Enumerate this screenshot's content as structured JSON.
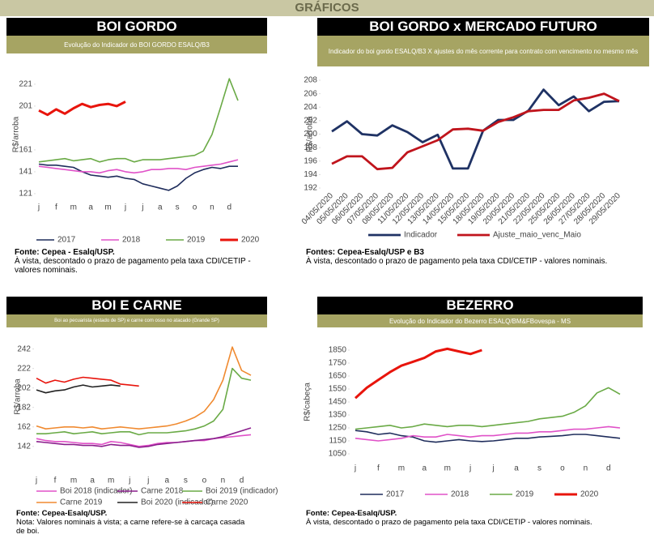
{
  "header": {
    "title": "GRÁFICOS"
  },
  "chart_data": [
    {
      "type": "line",
      "title": "BOI GORDO",
      "subtitle": "Evolução do Indicador do BOI GORDO ESALQ/B3",
      "y_label": "R$/arroba",
      "categories": [
        "j",
        null,
        "f",
        null,
        "m",
        null,
        "a",
        null,
        "m",
        null,
        "j",
        null,
        "j",
        null,
        "a",
        null,
        "s",
        null,
        "o",
        null,
        "n",
        null,
        "d",
        null
      ],
      "ylim": [
        118,
        232
      ],
      "yticks": [
        121,
        141,
        161,
        201,
        221
      ],
      "series": [
        {
          "name": "2017",
          "color": "#1f2d5c",
          "values": [
            148,
            147,
            147,
            146,
            145,
            141,
            138,
            137,
            136,
            137,
            135,
            134,
            130,
            128,
            126,
            124,
            128,
            135,
            140,
            143,
            145,
            144,
            146,
            146
          ]
        },
        {
          "name": "2018",
          "color": "#e052c8",
          "values": [
            146,
            145,
            144,
            143,
            142,
            141,
            141,
            140,
            142,
            143,
            141,
            140,
            141,
            143,
            143,
            144,
            144,
            143,
            145,
            146,
            147,
            148,
            150,
            152
          ]
        },
        {
          "name": "2019",
          "color": "#6aaa46",
          "values": [
            150,
            151,
            152,
            153,
            151,
            152,
            153,
            150,
            152,
            153,
            153,
            150,
            152,
            152,
            152,
            153,
            154,
            155,
            156,
            160,
            175,
            200,
            226,
            206
          ]
        },
        {
          "name": "2020",
          "color": "#e8140c",
          "values": [
            197,
            193,
            198,
            194,
            199,
            203,
            200,
            202,
            203,
            201,
            205,
            null,
            null,
            null,
            null,
            null,
            null,
            null,
            null,
            null,
            null,
            null,
            null,
            null
          ]
        }
      ],
      "source": "Fonte: Cepea - Esalq/USP.",
      "note": "À vista, descontado o prazo de pagamento pela taxa CDI/CETIP - valores nominais."
    },
    {
      "type": "line",
      "title": "BOI GORDO x MERCADO FUTURO",
      "subtitle": "Indicador do boi gordo ESALQ/B3 X  ajustes do mês corrente para contrato com vencimento no mesmo mês",
      "y_label": "R$/arroba",
      "categories": [
        "04/05/2020",
        "05/05/2020",
        "06/05/2020",
        "07/05/2020",
        "08/05/2020",
        "11/05/2020",
        "12/05/2020",
        "13/05/2020",
        "14/05/2020",
        "15/05/2020",
        "18/05/2020",
        "19/05/2020",
        "20/05/2020",
        "21/05/2020",
        "22/05/2020",
        "25/05/2020",
        "26/05/2020",
        "27/05/2020",
        "28/05/2020",
        "29/05/2020"
      ],
      "ylim": [
        192,
        208
      ],
      "yticks": [
        192,
        194,
        196,
        198,
        200,
        202,
        204,
        206,
        208
      ],
      "series": [
        {
          "name": "Indicador",
          "color": "#1f3264",
          "values": [
            200.4,
            201.9,
            200.0,
            199.8,
            201.3,
            200.3,
            198.8,
            199.9,
            194.9,
            194.9,
            200.5,
            202.1,
            202.1,
            203.5,
            206.6,
            204.3,
            205.6,
            203.4,
            204.8,
            204.9
          ]
        },
        {
          "name": "Ajuste_maio_venc_Maio",
          "color": "#c0141c",
          "values": [
            195.6,
            196.7,
            196.7,
            194.8,
            195.0,
            197.3,
            198.2,
            199.1,
            200.7,
            200.8,
            200.5,
            201.8,
            202.5,
            203.4,
            203.6,
            203.6,
            205.0,
            205.4,
            206.0,
            204.9
          ]
        }
      ],
      "source": "Fontes: Cepea-Esalq/USP e B3",
      "note": "À vista, descontado o prazo de pagamento pela taxa CDI/CETIP - valores nominais."
    },
    {
      "type": "line",
      "title": "BOI E CARNE",
      "subtitle": "Boi ao pecuarista (estado de SP) e carne com osso no atacado (Grande SP)",
      "y_label": "R$/arroba",
      "categories": [
        "j",
        null,
        "f",
        null,
        "m",
        null,
        "a",
        null,
        "m",
        null,
        "j",
        null,
        "j",
        null,
        "a",
        null,
        "s",
        null,
        "o",
        null,
        "n",
        null,
        "d",
        null
      ],
      "ylim": [
        136,
        250
      ],
      "yticks": [
        142,
        162,
        182,
        202,
        222,
        242
      ],
      "series": [
        {
          "name": "Boi 2018 (indicador)",
          "color": "#e052c8",
          "values": [
            150,
            148,
            147,
            147,
            146,
            145,
            145,
            144,
            147,
            146,
            144,
            142,
            143,
            145,
            146,
            146,
            147,
            148,
            148,
            150,
            151,
            152,
            153,
            154
          ]
        },
        {
          "name": "Carne 2018",
          "color": "#8a1e8c",
          "values": [
            147,
            146,
            145,
            144,
            144,
            143,
            143,
            142,
            144,
            143,
            143,
            141,
            142,
            144,
            145,
            146,
            147,
            148,
            149,
            150,
            152,
            155,
            158,
            161
          ]
        },
        {
          "name": "Boi 2019 (indicador)",
          "color": "#6aaa46",
          "values": [
            155,
            155,
            156,
            157,
            155,
            156,
            157,
            155,
            156,
            157,
            157,
            154,
            156,
            156,
            156,
            157,
            158,
            160,
            163,
            168,
            180,
            222,
            212,
            210
          ]
        },
        {
          "name": "Carne 2019",
          "color": "#f08a30",
          "values": [
            163,
            160,
            161,
            162,
            162,
            161,
            162,
            160,
            161,
            162,
            161,
            160,
            161,
            162,
            163,
            165,
            168,
            172,
            178,
            190,
            210,
            244,
            220,
            215
          ]
        },
        {
          "name": "Boi 2020 (indicador)",
          "color": "#222222",
          "values": [
            200,
            197,
            199,
            200,
            203,
            205,
            203,
            204,
            205,
            204,
            null,
            null,
            null,
            null,
            null,
            null,
            null,
            null,
            null,
            null,
            null,
            null,
            null,
            null
          ]
        },
        {
          "name": "Carne 2020",
          "color": "#e8140c",
          "values": [
            212,
            207,
            210,
            208,
            211,
            213,
            212,
            211,
            210,
            206,
            205,
            204,
            null,
            null,
            null,
            null,
            null,
            null,
            null,
            null,
            null,
            null,
            null,
            null
          ]
        }
      ],
      "source": "Fonte: Cepea-Esalq/USP.",
      "note": "Nota: Valores nominais à vista; a carne refere-se à carcaça casada de boi."
    },
    {
      "type": "line",
      "title": "BEZERRO",
      "subtitle": "Evolução do Indicador do Bezerro ESALQ/BM&FBovespa - MS",
      "y_label": "R$/cabeça",
      "categories": [
        "j",
        null,
        "f",
        null,
        "m",
        null,
        "a",
        null,
        "m",
        null,
        "j",
        null,
        "j",
        null,
        "a",
        null,
        "s",
        null,
        "o",
        null,
        "n",
        null,
        "d",
        null
      ],
      "ylim": [
        1000,
        1900
      ],
      "yticks": [
        1050,
        1150,
        1250,
        1350,
        1450,
        1550,
        1650,
        1750,
        1850
      ],
      "series": [
        {
          "name": "2017",
          "color": "#1f2d5c",
          "values": [
            1230,
            1220,
            1200,
            1210,
            1190,
            1180,
            1150,
            1140,
            1150,
            1160,
            1150,
            1145,
            1150,
            1160,
            1170,
            1170,
            1180,
            1185,
            1190,
            1200,
            1200,
            1190,
            1180,
            1170
          ]
        },
        {
          "name": "2018",
          "color": "#e052c8",
          "values": [
            1170,
            1160,
            1150,
            1160,
            1170,
            1190,
            1180,
            1180,
            1200,
            1190,
            1180,
            1190,
            1190,
            1200,
            1210,
            1210,
            1220,
            1220,
            1230,
            1240,
            1240,
            1250,
            1260,
            1250
          ]
        },
        {
          "name": "2019",
          "color": "#6aaa46",
          "values": [
            1240,
            1250,
            1260,
            1270,
            1250,
            1260,
            1280,
            1270,
            1260,
            1270,
            1270,
            1260,
            1270,
            1280,
            1290,
            1300,
            1320,
            1330,
            1340,
            1370,
            1420,
            1520,
            1560,
            1510
          ]
        },
        {
          "name": "2020",
          "color": "#e8140c",
          "values": [
            1480,
            1560,
            1620,
            1680,
            1730,
            1760,
            1790,
            1840,
            1860,
            1840,
            1820,
            1850,
            null,
            null,
            null,
            null,
            null,
            null,
            null,
            null,
            null,
            null,
            null,
            null
          ]
        }
      ],
      "source": "Fonte: Cepea-Esalq/USP.",
      "note": "À vista, descontado o prazo de pagamento pela taxa CDI/CETIP - valores nominais."
    }
  ]
}
